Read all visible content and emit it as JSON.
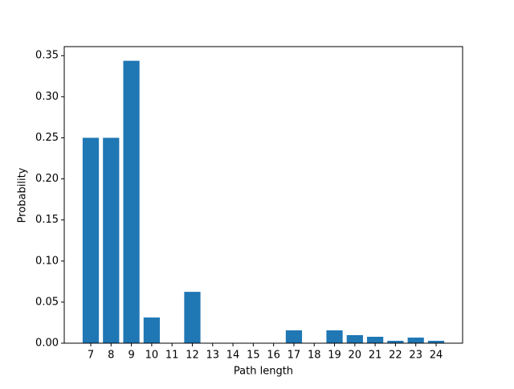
{
  "chart_data": {
    "type": "bar",
    "x_label": "Path length",
    "y_label": "Probability",
    "x": [
      7,
      8,
      9,
      10,
      11,
      12,
      13,
      14,
      15,
      16,
      17,
      18,
      19,
      20,
      21,
      22,
      23,
      24
    ],
    "values": [
      0.25,
      0.25,
      0.34375,
      0.03125,
      0,
      0.0625,
      0,
      0,
      0,
      0,
      0.015625,
      0,
      0.015625,
      0.0098,
      0.0078,
      0.0029,
      0.0068,
      0.0029
    ],
    "color": "#1f77b4",
    "xlim": [
      5.695,
      25.305
    ],
    "ylim": [
      0,
      0.361
    ],
    "xticks": [
      7,
      8,
      9,
      10,
      11,
      12,
      13,
      14,
      15,
      16,
      17,
      18,
      19,
      20,
      21,
      22,
      23,
      24
    ],
    "yticks": [
      {
        "value": 0,
        "label": "0.00"
      },
      {
        "value": 0.05,
        "label": "0.05"
      },
      {
        "value": 0.1,
        "label": "0.10"
      },
      {
        "value": 0.15,
        "label": "0.15"
      },
      {
        "value": 0.2,
        "label": "0.20"
      },
      {
        "value": 0.25,
        "label": "0.25"
      },
      {
        "value": 0.3,
        "label": "0.30"
      },
      {
        "value": 0.35,
        "label": "0.35"
      }
    ]
  }
}
